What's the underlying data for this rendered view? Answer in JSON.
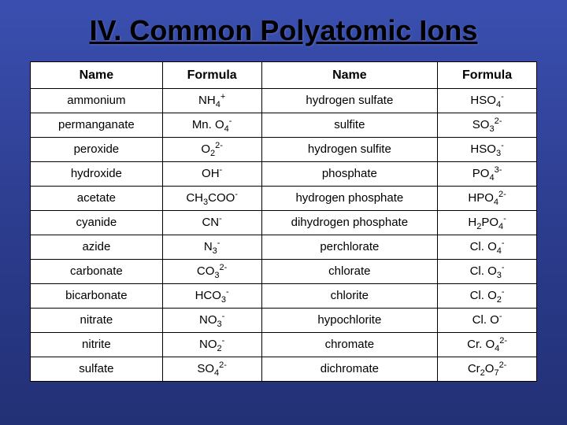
{
  "title": "IV. Common Polyatomic Ions",
  "headers": {
    "c1": "Name",
    "c2": "Formula",
    "c3": "Name",
    "c4": "Formula"
  },
  "rows": [
    {
      "n1": "ammonium",
      "f1": "NH<sub>4</sub><sup>+</sup>",
      "n2": "hydrogen sulfate",
      "f2": "HSO<sub>4</sub><sup>-</sup>"
    },
    {
      "n1": "permanganate",
      "f1": "Mn. O<sub>4</sub><sup>-</sup>",
      "n2": "sulfite",
      "f2": "SO<sub>3</sub><sup>2-</sup>"
    },
    {
      "n1": "peroxide",
      "f1": "O<sub>2</sub><sup>2-</sup>",
      "n2": "hydrogen sulfite",
      "f2": "HSO<sub>3</sub><sup>-</sup>"
    },
    {
      "n1": "hydroxide",
      "f1": "OH<sup>-</sup>",
      "n2": "phosphate",
      "f2": "PO<sub>4</sub><sup>3-</sup>"
    },
    {
      "n1": "acetate",
      "f1": "CH<sub>3</sub>COO<sup>-</sup>",
      "n2": "hydrogen phosphate",
      "f2": "HPO<sub>4</sub><sup>2-</sup>"
    },
    {
      "n1": "cyanide",
      "f1": "CN<sup>-</sup>",
      "n2": "dihydrogen phosphate",
      "f2": "H<sub>2</sub>PO<sub>4</sub><sup>-</sup>"
    },
    {
      "n1": "azide",
      "f1": "N<sub>3</sub><sup>-</sup>",
      "n2": "perchlorate",
      "f2": "Cl. O<sub>4</sub><sup>-</sup>"
    },
    {
      "n1": "carbonate",
      "f1": "CO<sub>3</sub><sup>2-</sup>",
      "n2": "chlorate",
      "f2": "Cl. O<sub>3</sub><sup>-</sup>"
    },
    {
      "n1": "bicarbonate",
      "f1": "HCO<sub>3</sub><sup>-</sup>",
      "n2": "chlorite",
      "f2": "Cl. O<sub>2</sub><sup>-</sup>"
    },
    {
      "n1": "nitrate",
      "f1": "NO<sub>3</sub><sup>-</sup>",
      "n2": "hypochlorite",
      "f2": "Cl. O<sup>-</sup>"
    },
    {
      "n1": "nitrite",
      "f1": "NO<sub>2</sub><sup>-</sup>",
      "n2": "chromate",
      "f2": "Cr. O<sub>4</sub><sup>2-</sup>"
    },
    {
      "n1": "sulfate",
      "f1": "SO<sub>4</sub><sup>2-</sup>",
      "n2": "dichromate",
      "f2": "Cr<sub>2</sub>O<sub>7</sub><sup>2-</sup>"
    }
  ],
  "style": {
    "type": "table",
    "columns": 4,
    "background_gradient": [
      "#3a4fb0",
      "#2d3d8f",
      "#223075"
    ],
    "title_color": "#000000",
    "title_fontsize": 36,
    "title_underline": true,
    "cell_background": "#ffffff",
    "border_color": "#000000",
    "border_width": 1.5,
    "header_fontsize": 16,
    "cell_fontsize": 15,
    "font_family": "Arial",
    "column_widths_pct": [
      24,
      18,
      32,
      18
    ]
  }
}
